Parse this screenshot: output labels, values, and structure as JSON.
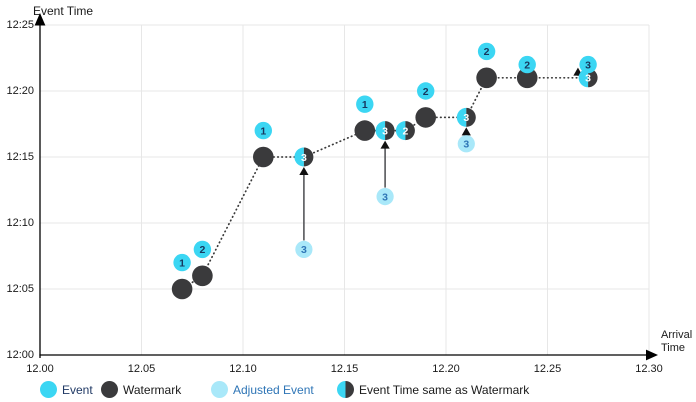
{
  "colors": {
    "event": "#3BD6F3",
    "adjusted": "#A9E8F9",
    "watermark": "#3A3A3C",
    "event_number": "#17375E",
    "adjusted_number": "#2E75B6",
    "grid": "#E7E7E7",
    "axis": "#000000",
    "dotted_line": "#3B3B3B",
    "arrow_line": "#55565A",
    "arrow_head": "#111111",
    "text": "#1A1A1A"
  },
  "legend": {
    "items": [
      {
        "label": "Event",
        "type": "event",
        "label_color": "#1F3864"
      },
      {
        "label": "Watermark",
        "type": "watermark",
        "label_color": "#1A1A1A"
      },
      {
        "label": "Adjusted Event",
        "type": "adjusted",
        "label_color": "#2E75B6"
      },
      {
        "label": "Event Time same as Watermark",
        "type": "same-as-watermark",
        "label_color": "#1A1A1A"
      }
    ]
  },
  "chart_data": {
    "type": "scatter",
    "x_axis": {
      "label_lines": [
        "Arrival",
        "Time"
      ],
      "ticks": [
        "12.00",
        "12.05",
        "12.10",
        "12.15",
        "12.20",
        "12.25",
        "12.30"
      ],
      "range": [
        "12.00",
        "12.30"
      ]
    },
    "y_axis": {
      "label": "Event Time",
      "ticks": [
        "12:00",
        "12:05",
        "12:10",
        "12:15",
        "12:20",
        "12:25"
      ],
      "range": [
        "12:00",
        "12:25"
      ]
    },
    "events": [
      {
        "n": "1",
        "arrival": "12.07",
        "event_time": "12:07"
      },
      {
        "n": "2",
        "arrival": "12.08",
        "event_time": "12:08"
      },
      {
        "n": "1",
        "arrival": "12.11",
        "event_time": "12:17"
      },
      {
        "n": "1",
        "arrival": "12.16",
        "event_time": "12:19"
      },
      {
        "n": "2",
        "arrival": "12.19",
        "event_time": "12:20"
      },
      {
        "n": "2",
        "arrival": "12.22",
        "event_time": "12:23"
      },
      {
        "n": "2",
        "arrival": "12.24",
        "event_time": "12:22"
      },
      {
        "n": "3",
        "arrival": "12.27",
        "event_time": "12:22"
      }
    ],
    "watermarks": [
      {
        "arrival": "12.07",
        "value": "12:05"
      },
      {
        "arrival": "12.08",
        "value": "12:06"
      },
      {
        "arrival": "12.11",
        "value": "12:15"
      },
      {
        "arrival": "12.16",
        "value": "12:17"
      },
      {
        "arrival": "12.19",
        "value": "12:18"
      },
      {
        "arrival": "12.22",
        "value": "12:21"
      },
      {
        "arrival": "12.24",
        "value": "12:21"
      }
    ],
    "same_as_watermark": [
      {
        "n": "3",
        "arrival": "12.13",
        "value": "12:15"
      },
      {
        "n": "3",
        "arrival": "12.17",
        "value": "12:17"
      },
      {
        "n": "2",
        "arrival": "12.18",
        "value": "12:17"
      },
      {
        "n": "3",
        "arrival": "12.21",
        "value": "12:18"
      },
      {
        "n": "3",
        "arrival": "12.27",
        "value": "12:21"
      }
    ],
    "adjusted_events": [
      {
        "n": "3",
        "arrival": "12.13",
        "original_time": "12:08",
        "adjusted_to": "12:15"
      },
      {
        "n": "3",
        "arrival": "12.17",
        "original_time": "12:12",
        "adjusted_to": "12:17"
      },
      {
        "n": "3",
        "arrival": "12.21",
        "original_time": "12:16",
        "adjusted_to": "12:18"
      }
    ],
    "arrows": [
      {
        "x": "12.13",
        "from": "12:08",
        "to": "12:15",
        "trim_start": 9,
        "trim_end": 10
      },
      {
        "x": "12.17",
        "from": "12:12",
        "to": "12:17",
        "trim_start": 9,
        "trim_end": 10
      },
      {
        "x": "12.21",
        "from": "12:16",
        "to": "12:18",
        "trim_start": 9,
        "trim_end": 10
      },
      {
        "x": "12.265",
        "from": "12:21",
        "to": "12:22",
        "trim_start": 2,
        "trim_end": 3
      }
    ],
    "watermark_path": [
      [
        "12.07",
        "12:05"
      ],
      [
        "12.08",
        "12:06"
      ],
      [
        "12.11",
        "12:15"
      ],
      [
        "12.13",
        "12:15"
      ],
      [
        "12.16",
        "12:17"
      ],
      [
        "12.18",
        "12:17"
      ],
      [
        "12.19",
        "12:18"
      ],
      [
        "12.21",
        "12:18"
      ],
      [
        "12.22",
        "12:21"
      ],
      [
        "12.24",
        "12:21"
      ],
      [
        "12.27",
        "12:21"
      ]
    ]
  }
}
